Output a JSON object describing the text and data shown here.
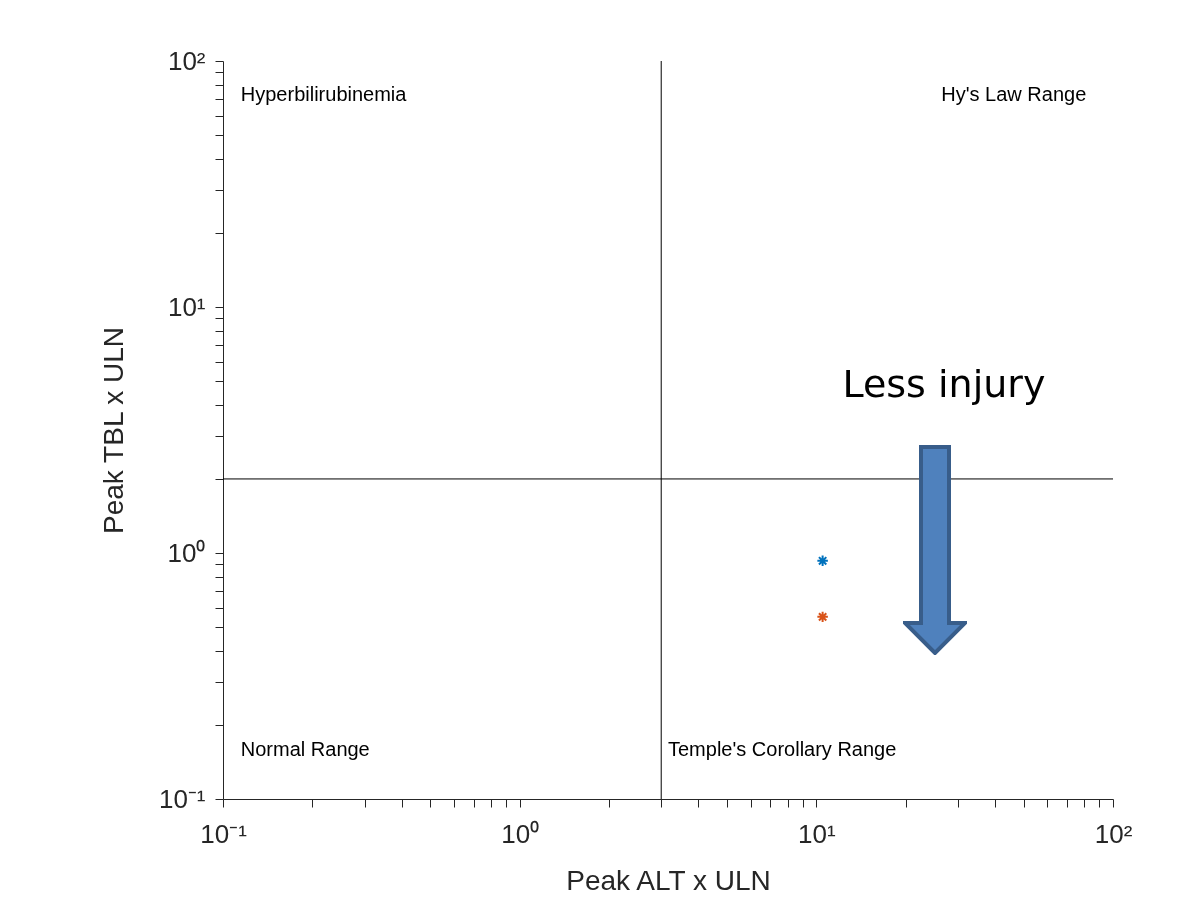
{
  "chart_data": {
    "type": "scatter",
    "xlabel": "Peak ALT x ULN",
    "ylabel": "Peak TBL x ULN",
    "log": "xy",
    "grid": false,
    "marker": "cross",
    "xlim": [
      0.1,
      100
    ],
    "ylim": [
      0.1,
      100
    ],
    "xticks": [
      {
        "value": 0.1,
        "label": "10⁻¹"
      },
      {
        "value": 0.2,
        "label": null
      },
      {
        "value": 0.3,
        "label": null
      },
      {
        "value": 0.4,
        "label": null
      },
      {
        "value": 0.5,
        "label": null
      },
      {
        "value": 0.6,
        "label": null
      },
      {
        "value": 0.7,
        "label": null
      },
      {
        "value": 0.8,
        "label": null
      },
      {
        "value": 0.9,
        "label": null
      },
      {
        "value": 1,
        "label": "10⁰"
      },
      {
        "value": 2,
        "label": null
      },
      {
        "value": 3,
        "label": null
      },
      {
        "value": 4,
        "label": null
      },
      {
        "value": 5,
        "label": null
      },
      {
        "value": 6,
        "label": null
      },
      {
        "value": 7,
        "label": null
      },
      {
        "value": 8,
        "label": null
      },
      {
        "value": 9,
        "label": null
      },
      {
        "value": 10,
        "label": "10¹"
      },
      {
        "value": 20,
        "label": null
      },
      {
        "value": 30,
        "label": null
      },
      {
        "value": 40,
        "label": null
      },
      {
        "value": 50,
        "label": null
      },
      {
        "value": 60,
        "label": null
      },
      {
        "value": 70,
        "label": null
      },
      {
        "value": 80,
        "label": null
      },
      {
        "value": 90,
        "label": null
      },
      {
        "value": 100,
        "label": "10²"
      }
    ],
    "yticks": [
      {
        "value": 0.1,
        "label": "10⁻¹"
      },
      {
        "value": 0.2,
        "label": null
      },
      {
        "value": 0.3,
        "label": null
      },
      {
        "value": 0.4,
        "label": null
      },
      {
        "value": 0.5,
        "label": null
      },
      {
        "value": 0.6,
        "label": null
      },
      {
        "value": 0.7,
        "label": null
      },
      {
        "value": 0.8,
        "label": null
      },
      {
        "value": 0.9,
        "label": null
      },
      {
        "value": 1,
        "label": "10⁰"
      },
      {
        "value": 2,
        "label": null
      },
      {
        "value": 3,
        "label": null
      },
      {
        "value": 4,
        "label": null
      },
      {
        "value": 5,
        "label": null
      },
      {
        "value": 6,
        "label": null
      },
      {
        "value": 7,
        "label": null
      },
      {
        "value": 8,
        "label": null
      },
      {
        "value": 9,
        "label": null
      },
      {
        "value": 10,
        "label": "10¹"
      },
      {
        "value": 20,
        "label": null
      },
      {
        "value": 30,
        "label": null
      },
      {
        "value": 40,
        "label": null
      },
      {
        "value": 50,
        "label": null
      },
      {
        "value": 60,
        "label": null
      },
      {
        "value": 70,
        "label": null
      },
      {
        "value": 80,
        "label": null
      },
      {
        "value": 90,
        "label": null
      },
      {
        "value": 100,
        "label": "10²"
      }
    ],
    "series": [
      {
        "color": "#0072bd",
        "x": [
          10.5
        ],
        "values": [
          0.93
        ]
      },
      {
        "color": "#d95319",
        "x": [
          10.5
        ],
        "values": [
          0.55
        ]
      }
    ],
    "ref_lines": [
      {
        "axis": "x",
        "value": 3,
        "color": "#000000"
      },
      {
        "axis": "y",
        "value": 2,
        "color": "#000000"
      }
    ],
    "annotations": [
      "Hyperbilirubinemia",
      "Hy's Law Range",
      "Normal Range",
      "Temple's Corollary Range",
      "Less injury"
    ]
  }
}
